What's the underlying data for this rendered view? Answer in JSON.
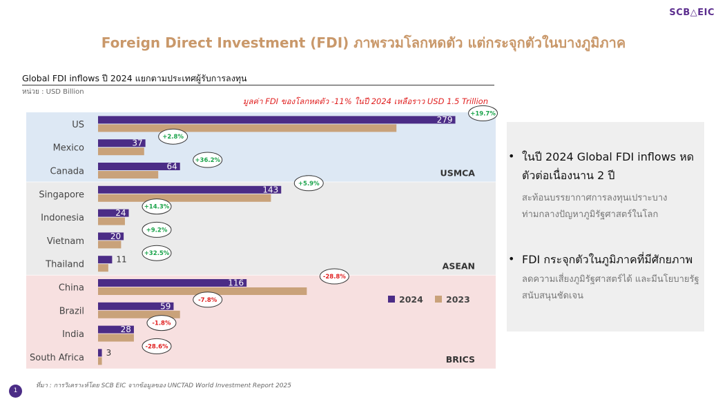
{
  "logo": "SCB△EIC",
  "title": "Foreign Direct Investment (FDI) ภาพรวมโลกหดตัว แต่กระจุกตัวในบางภูมิภาค",
  "chart_title": "Global FDI inflows ปี 2024 แยกตามประเทศผู้รับการลงทุน",
  "unit": "หน่วย : USD Billion",
  "headline": "มูลค่า FDI ของโลกหดตัว -11% ในปี 2024 เหลือราว USD 1.5 Trillion",
  "colors": {
    "bar_2024": "#4b2c86",
    "bar_2023": "#c9a27a",
    "usmca_bg": "#dde8f4",
    "asean_bg": "#ebebeb",
    "brics_bg": "#f7e0e0",
    "positive": "#1aa34a",
    "negative": "#e02020"
  },
  "chart_data": {
    "type": "bar",
    "orientation": "horizontal",
    "categories": [
      "US",
      "Mexico",
      "Canada",
      "Singapore",
      "Indonesia",
      "Vietnam",
      "Thailand",
      "China",
      "Brazil",
      "India",
      "South Africa"
    ],
    "series": [
      {
        "name": "2024",
        "values": [
          279,
          37,
          64,
          143,
          24,
          20,
          11,
          116,
          59,
          28,
          3
        ]
      },
      {
        "name": "2023",
        "values": [
          233,
          36,
          47,
          135,
          21,
          18,
          8,
          163,
          64,
          28,
          3
        ]
      }
    ],
    "value_labels": [
      "279",
      "37",
      "64",
      "143",
      "24",
      "20",
      "11",
      "116",
      "59",
      "28",
      "3"
    ],
    "changes": [
      "+19.7%",
      "+2.8%",
      "+36.2%",
      "+5.9%",
      "+14.3%",
      "+9.2%",
      "+32.5%",
      "-28.8%",
      "-7.8%",
      "-1.8%",
      "-28.6%"
    ],
    "groups": [
      {
        "name": "USMCA",
        "members": [
          "US",
          "Mexico",
          "Canada"
        ]
      },
      {
        "name": "ASEAN",
        "members": [
          "Singapore",
          "Indonesia",
          "Vietnam",
          "Thailand"
        ]
      },
      {
        "name": "BRICS",
        "members": [
          "China",
          "Brazil",
          "India",
          "South Africa"
        ]
      }
    ],
    "legend": [
      "2024",
      "2023"
    ],
    "legend_position": "right",
    "xlim": [
      0,
      300
    ],
    "grid": false
  },
  "bullets": [
    {
      "heading": "ในปี 2024 Global FDI inflows หดตัวต่อเนื่องนาน 2 ปี",
      "detail": "สะท้อนบรรยากาศการลงทุนเปราะบางท่ามกลางปัญหาภูมิรัฐศาสตร์ในโลก"
    },
    {
      "heading": "FDI กระจุกตัวในภูมิภาคที่มีศักยภาพ",
      "detail": "ลดความเสี่ยงภูมิรัฐศาสตร์ได้ และมีนโยบายรัฐสนับสนุนชัดเจน"
    }
  ],
  "bullet_symbol": "•",
  "source": "ที่มา : การวิเคราะห์โดย SCB EIC จากข้อมูลของ UNCTAD World Investment Report 2025",
  "page_number": "1"
}
